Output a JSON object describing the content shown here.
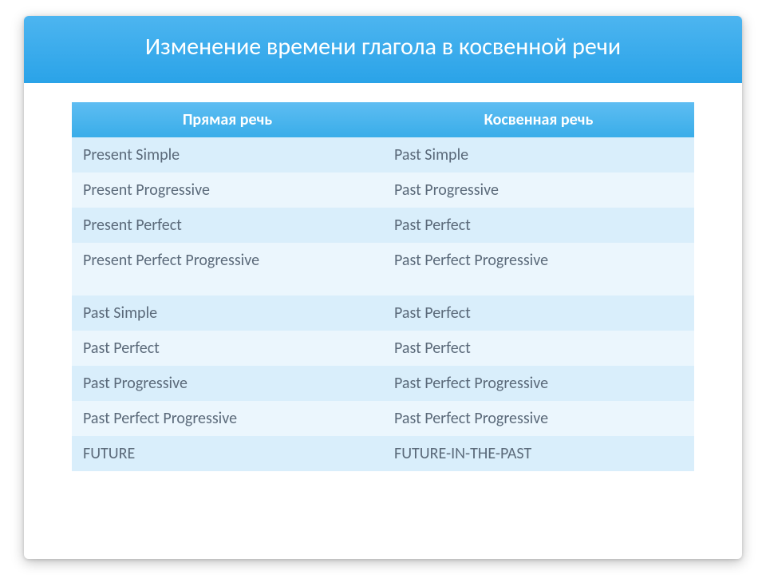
{
  "title": "Изменение времени глагола в косвенной речи",
  "columns": [
    "Прямая речь",
    "Косвенная речь"
  ],
  "rows": [
    [
      "Present Simple",
      "Past Simple"
    ],
    [
      "Present Progressive",
      "Past Progressive"
    ],
    [
      "Present Perfect",
      "Past Perfect"
    ],
    [
      "Present Perfect Progressive",
      "Past Perfect Progressive"
    ],
    [
      "Past Simple",
      "Past Perfect"
    ],
    [
      "Past Perfect",
      "Past Perfect"
    ],
    [
      "Past Progressive",
      "Past Perfect Progressive"
    ],
    [
      "Past Perfect Progressive",
      "Past Perfect Progressive"
    ],
    [
      "FUTURE",
      "FUTURE-IN-THE-PAST"
    ]
  ],
  "tall_row_index": 3,
  "colors": {
    "header_gradient_top": "#4db5f0",
    "header_gradient_bottom": "#2aa3e8",
    "th_gradient_top": "#5ebdf2",
    "th_gradient_bottom": "#39ade9",
    "row_odd": "#d9eefb",
    "row_even": "#ebf6fd",
    "text": "#5b6a7a",
    "white": "#ffffff"
  },
  "typography": {
    "title_fontsize": 30,
    "table_fontsize": 20,
    "th_fontsize": 20,
    "font_family": "Segoe UI / Calibri"
  },
  "layout": {
    "slide_width": 900,
    "slide_height": 680,
    "content_padding": "24px 60px",
    "cell_padding": "10px 14px"
  }
}
